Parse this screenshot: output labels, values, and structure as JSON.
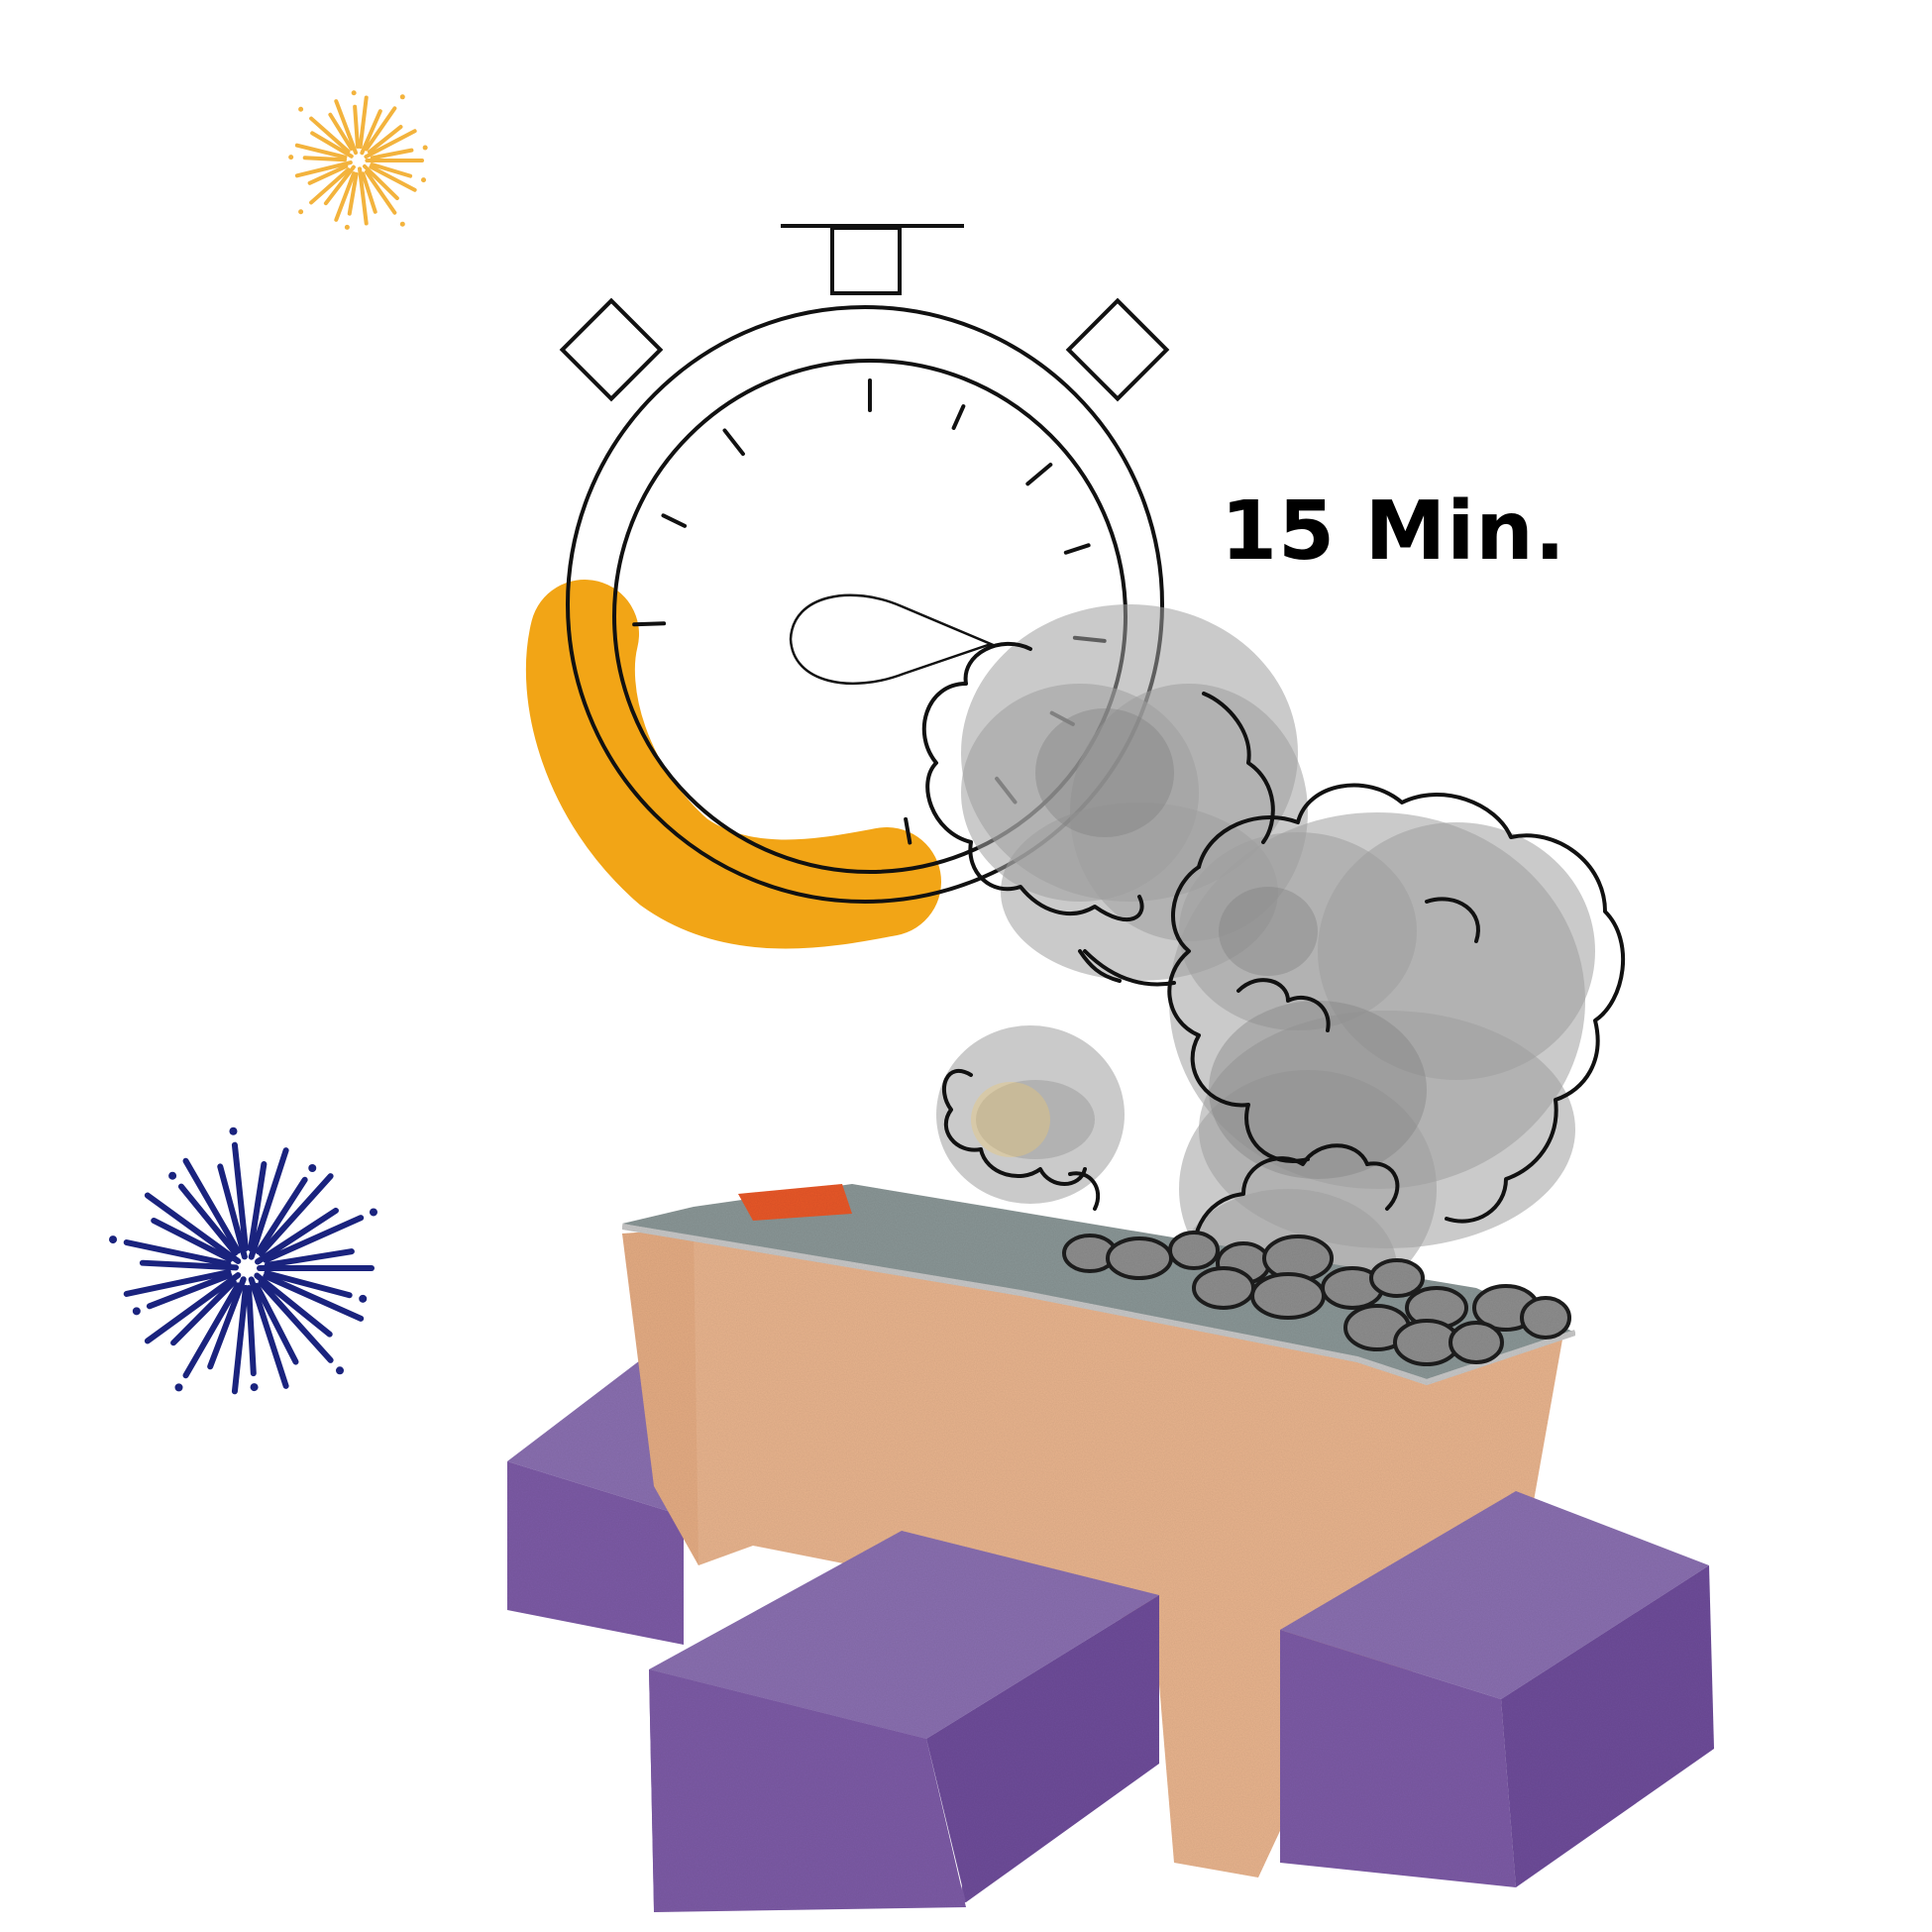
{
  "timer": {
    "duration_label": "15 Min.",
    "elapsed_fraction": 0.25
  },
  "colors": {
    "accent_orange": "#F2A516",
    "burst_orange": "#F3B33D",
    "burst_navy": "#1A237E",
    "block_purple": "#7D5BA6",
    "block_purple_top": "#8A70B0",
    "wrapper_kraft": "#E8B48E",
    "foil_grey": "#8A9696",
    "smoke_grey": "#9E9E9E",
    "outline": "#111111"
  },
  "icons": [
    "stopwatch-icon",
    "firework-burst-icon",
    "smoke-icon",
    "smoke-bomb-icon",
    "cube-icon"
  ]
}
